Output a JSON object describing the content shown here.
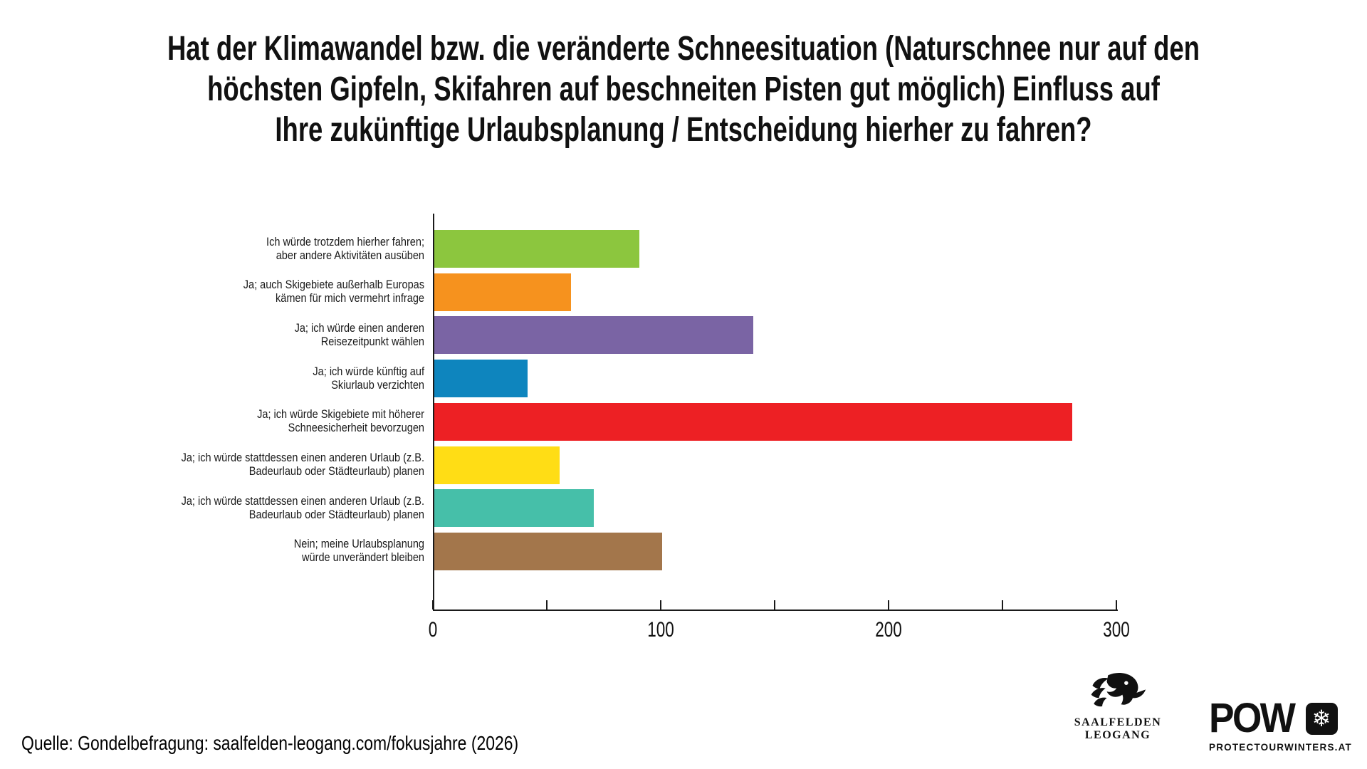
{
  "title": {
    "lines": [
      "Hat der Klimawandel bzw. die veränderte Schneesituation (Naturschnee nur auf den",
      "höchsten Gipfeln, Skifahren auf beschneiten Pisten gut möglich) Einfluss auf",
      "Ihre zukünftige Urlaubsplanung / Entscheidung hierher zu fahren?"
    ],
    "full": "Hat der Klimawandel bzw. die veränderte Schneesituation (Naturschnee nur auf den höchsten Gipfeln, Skifahren auf beschneiten Pisten gut möglich) Einfluss auf Ihre zukünftige Urlaubsplanung / Entscheidung hierher zu fahren?"
  },
  "chart_data": {
    "type": "bar",
    "orientation": "horizontal",
    "title": "Hat der Klimawandel bzw. die veränderte Schneesituation (Naturschnee nur auf den höchsten Gipfeln, Skifahren auf beschneiten Pisten gut möglich) Einfluss auf Ihre zukünftige Urlaubsplanung / Entscheidung hierher zu fahren?",
    "xlabel": "",
    "ylabel": "",
    "xlim": [
      0,
      300
    ],
    "x_major_ticks": [
      0,
      100,
      200,
      300
    ],
    "x_minor_tick_step": 50,
    "grid": false,
    "legend": "none",
    "categories": [
      "Ich würde trotzdem hierher fahren; aber andere Aktivitäten ausüben",
      "Ja; auch Skigebiete außerhalb Europas kämen für mich vermehrt infrage",
      "Ja; ich würde einen anderen Reisezeitpunkt wählen",
      "Ja; ich würde künftig auf Skiurlaub verzichten",
      "Ja; ich würde Skigebiete mit höherer Schneesicherheit bevorzugen",
      "Ja; ich würde stattdessen einen anderen Urlaub (z.B. Badeurlaub oder Städteurlaub) planen",
      "Ja; ich würde stattdessen einen anderen Urlaub (z.B. Badeurlaub oder Städteurlaub) planen",
      "Nein; meine Urlaubsplanung würde unverändert bleiben"
    ],
    "category_lines": [
      [
        "Ich würde trotzdem hierher fahren;",
        "aber andere Aktivitäten ausüben"
      ],
      [
        "Ja; auch Skigebiete außerhalb Europas",
        "kämen für mich vermehrt infrage"
      ],
      [
        "Ja; ich würde einen anderen",
        "Reisezeitpunkt wählen"
      ],
      [
        "Ja; ich würde künftig auf",
        "Skiurlaub verzichten"
      ],
      [
        "Ja; ich würde Skigebiete mit höherer",
        "Schneesicherheit bevorzugen"
      ],
      [
        "Ja; ich würde stattdessen einen anderen Urlaub (z.B.",
        "Badeurlaub oder Städteurlaub) planen"
      ],
      [
        "Ja; ich würde stattdessen einen anderen Urlaub (z.B.",
        "Badeurlaub oder Städteurlaub) planen"
      ],
      [
        "Nein; meine Urlaubsplanung",
        "würde unverändert bleiben"
      ]
    ],
    "values": [
      90,
      60,
      140,
      41,
      280,
      55,
      70,
      100
    ],
    "colors": [
      "#8CC63E",
      "#F6921E",
      "#7A64A4",
      "#0E85BE",
      "#ED2024",
      "#FFDD15",
      "#46BFA9",
      "#A3764B"
    ]
  },
  "footer": {
    "source": "Quelle: Gondelbefragung: saalfelden-leogang.com/fokusjahre (2026)",
    "logo_saalfelden": {
      "line1": "SAALFELDEN",
      "line2": "LEOGANG"
    },
    "logo_pow": {
      "wordmark": "POW",
      "flake": "❄",
      "subtitle": "PROTECTOURWINTERS.AT"
    }
  }
}
